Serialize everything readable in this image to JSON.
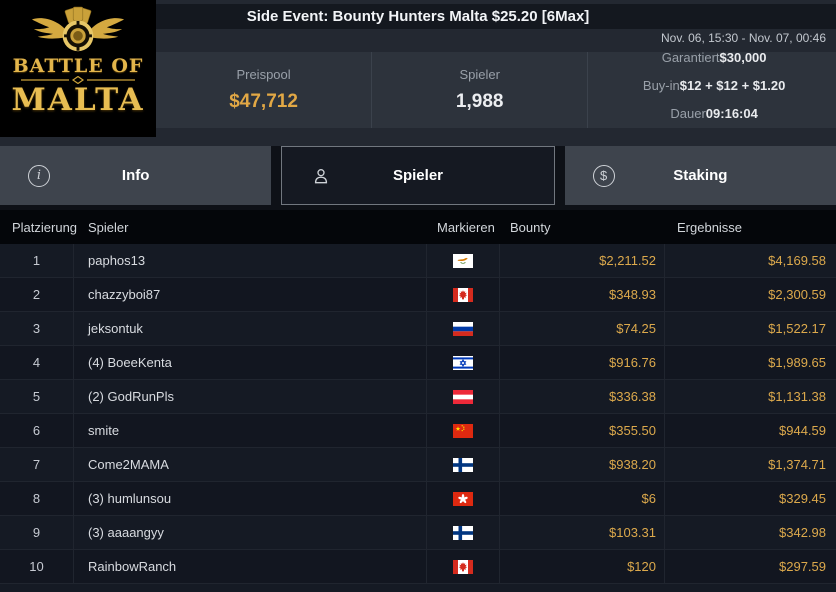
{
  "header": {
    "title": "Side Event: Bounty Hunters Malta $25.20 [6Max]",
    "date_range": "Nov. 06, 15:30 - Nov. 07, 00:46",
    "logo": {
      "line1": "BATTLE OF",
      "line2": "MALTA"
    },
    "stats": {
      "prizepool_label": "Preispool",
      "prizepool_value": "$47,712",
      "players_label": "Spieler",
      "players_value": "1,988",
      "details": [
        {
          "label": "Garantiert",
          "value": "$30,000"
        },
        {
          "label": "Buy-in",
          "value": "$12 + $12 + $1.20"
        },
        {
          "label": "Dauer",
          "value": "09:16:04"
        }
      ]
    }
  },
  "tabs": [
    {
      "label": "Info",
      "icon": "info-icon",
      "active": false
    },
    {
      "label": "Spieler",
      "icon": "person-icon",
      "active": true
    },
    {
      "label": "Staking",
      "icon": "dollar-icon",
      "active": false
    }
  ],
  "table": {
    "columns": [
      "Platzierung",
      "Spieler",
      "Markieren",
      "Bounty",
      "Ergebnisse"
    ],
    "rows": [
      {
        "rank": "1",
        "player": "paphos13",
        "country": "cyprus",
        "bounty": "$2,211.52",
        "result": "$4,169.58"
      },
      {
        "rank": "2",
        "player": "chazzyboi87",
        "country": "canada",
        "bounty": "$348.93",
        "result": "$2,300.59"
      },
      {
        "rank": "3",
        "player": "jeksontuk",
        "country": "russia",
        "bounty": "$74.25",
        "result": "$1,522.17"
      },
      {
        "rank": "4",
        "player": "(4) BoeeKenta",
        "country": "israel",
        "bounty": "$916.76",
        "result": "$1,989.65"
      },
      {
        "rank": "5",
        "player": "(2) GodRunPls",
        "country": "austria",
        "bounty": "$336.38",
        "result": "$1,131.38"
      },
      {
        "rank": "6",
        "player": "smite",
        "country": "china",
        "bounty": "$355.50",
        "result": "$944.59"
      },
      {
        "rank": "7",
        "player": "Come2MAMA",
        "country": "finland",
        "bounty": "$938.20",
        "result": "$1,374.71"
      },
      {
        "rank": "8",
        "player": "(3) humlunsou",
        "country": "hongkong",
        "bounty": "$6",
        "result": "$329.45"
      },
      {
        "rank": "9",
        "player": "(3) aaaangyy",
        "country": "finland",
        "bounty": "$103.31",
        "result": "$342.98"
      },
      {
        "rank": "10",
        "player": "RainbowRanch",
        "country": "canada",
        "bounty": "$120",
        "result": "$297.59"
      }
    ]
  },
  "colors": {
    "money_gold": "#dca94c",
    "prizepool_gold": "#e2a845",
    "brand_gold": "#e3b54b"
  }
}
